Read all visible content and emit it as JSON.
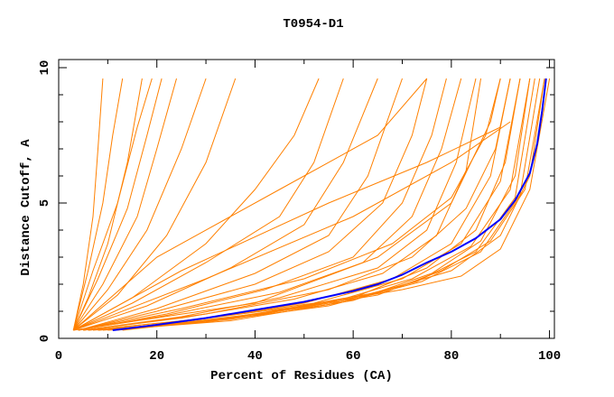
{
  "chart_data": {
    "type": "line",
    "title": "T0954-D1",
    "xlabel": "Percent of Residues (CA)",
    "ylabel": "Distance Cutoff, A",
    "xlim": [
      0,
      101
    ],
    "ylim": [
      0,
      10.3
    ],
    "x_ticks": [
      "0",
      "20",
      "40",
      "60",
      "80",
      "100"
    ],
    "x_tick_values": [
      0,
      20,
      40,
      60,
      80,
      100
    ],
    "x_minor_ticks": [
      10,
      30,
      50,
      70,
      90
    ],
    "y_ticks": [
      "0",
      "5",
      "10"
    ],
    "y_tick_values": [
      0,
      5,
      10
    ],
    "y_minor_ticks": [
      1,
      2,
      3,
      4,
      6,
      7,
      8,
      9
    ],
    "grid": false,
    "colors": {
      "models": "#ff8000",
      "highlight": "#0000ff",
      "axes": "#000000"
    },
    "highlight_series": [
      [
        11,
        0.3
      ],
      [
        20,
        0.5
      ],
      [
        30,
        0.75
      ],
      [
        40,
        1.05
      ],
      [
        50,
        1.35
      ],
      [
        60,
        1.75
      ],
      [
        65,
        2.0
      ],
      [
        70,
        2.35
      ],
      [
        75,
        2.8
      ],
      [
        80,
        3.2
      ],
      [
        85,
        3.7
      ],
      [
        90,
        4.4
      ],
      [
        93,
        5.1
      ],
      [
        96,
        6.1
      ],
      [
        97.5,
        7.2
      ],
      [
        98.5,
        8.4
      ],
      [
        99.3,
        9.6
      ]
    ],
    "series": [
      [
        [
          3,
          0.3
        ],
        [
          5,
          2
        ],
        [
          7,
          4.5
        ],
        [
          8,
          7
        ],
        [
          9,
          9.6
        ]
      ],
      [
        [
          3,
          0.3
        ],
        [
          6,
          2.5
        ],
        [
          9,
          5
        ],
        [
          11,
          7.5
        ],
        [
          13,
          9.6
        ]
      ],
      [
        [
          3,
          0.3
        ],
        [
          6,
          1.5
        ],
        [
          10,
          3.5
        ],
        [
          14,
          6.5
        ],
        [
          17,
          9.6
        ]
      ],
      [
        [
          3,
          0.3
        ],
        [
          7,
          2.5
        ],
        [
          12,
          5
        ],
        [
          16,
          7.8
        ],
        [
          19,
          9.6
        ]
      ],
      [
        [
          3,
          0.3
        ],
        [
          8,
          2.2
        ],
        [
          14,
          4.8
        ],
        [
          18,
          7.5
        ],
        [
          21,
          9.6
        ]
      ],
      [
        [
          3,
          0.3
        ],
        [
          9,
          2
        ],
        [
          16,
          4.5
        ],
        [
          20,
          7
        ],
        [
          24,
          9.6
        ]
      ],
      [
        [
          3,
          0.3
        ],
        [
          10,
          1.8
        ],
        [
          18,
          4
        ],
        [
          25,
          7
        ],
        [
          30,
          9.6
        ]
      ],
      [
        [
          3,
          0.3
        ],
        [
          12,
          1.6
        ],
        [
          22,
          3.8
        ],
        [
          30,
          6.5
        ],
        [
          36,
          9.6
        ]
      ],
      [
        [
          3,
          0.3
        ],
        [
          15,
          1.5
        ],
        [
          30,
          3.5
        ],
        [
          40,
          5.5
        ],
        [
          48,
          7.5
        ],
        [
          53,
          9.6
        ]
      ],
      [
        [
          3,
          0.3
        ],
        [
          15,
          1.3
        ],
        [
          30,
          2.8
        ],
        [
          45,
          4.5
        ],
        [
          52,
          6.5
        ],
        [
          58,
          9.6
        ]
      ],
      [
        [
          3,
          0.3
        ],
        [
          18,
          1.2
        ],
        [
          35,
          2.6
        ],
        [
          50,
          4.2
        ],
        [
          58,
          6.5
        ],
        [
          65,
          9.6
        ]
      ],
      [
        [
          4,
          0.3
        ],
        [
          20,
          1.1
        ],
        [
          40,
          2.4
        ],
        [
          55,
          3.8
        ],
        [
          63,
          6
        ],
        [
          70,
          9.6
        ]
      ],
      [
        [
          4,
          0.3
        ],
        [
          20,
          1
        ],
        [
          40,
          2
        ],
        [
          55,
          3.2
        ],
        [
          66,
          5
        ],
        [
          72,
          7.5
        ],
        [
          75,
          9.6
        ]
      ],
      [
        [
          4,
          0.3
        ],
        [
          22,
          0.9
        ],
        [
          42,
          1.8
        ],
        [
          60,
          3
        ],
        [
          70,
          5
        ],
        [
          76,
          7.5
        ],
        [
          79,
          9.6
        ]
      ],
      [
        [
          4,
          0.3
        ],
        [
          22,
          0.85
        ],
        [
          45,
          1.7
        ],
        [
          62,
          2.8
        ],
        [
          72,
          4.5
        ],
        [
          78,
          7
        ],
        [
          82,
          9.6
        ]
      ],
      [
        [
          5,
          0.3
        ],
        [
          25,
          0.8
        ],
        [
          45,
          1.5
        ],
        [
          65,
          2.6
        ],
        [
          75,
          4
        ],
        [
          81,
          6.5
        ],
        [
          85,
          9.6
        ]
      ],
      [
        [
          5,
          0.3
        ],
        [
          25,
          0.75
        ],
        [
          48,
          1.45
        ],
        [
          66,
          2.4
        ],
        [
          77,
          3.8
        ],
        [
          83,
          6.2
        ],
        [
          86,
          9.6
        ]
      ],
      [
        [
          6,
          0.3
        ],
        [
          28,
          0.7
        ],
        [
          50,
          1.3
        ],
        [
          68,
          2.2
        ],
        [
          80,
          3.5
        ],
        [
          88,
          6
        ],
        [
          92,
          9.6
        ]
      ],
      [
        [
          6,
          0.3
        ],
        [
          28,
          0.7
        ],
        [
          52,
          1.3
        ],
        [
          70,
          2.2
        ],
        [
          82,
          3.5
        ],
        [
          90,
          5.8
        ],
        [
          94,
          9.6
        ]
      ],
      [
        [
          7,
          0.3
        ],
        [
          30,
          0.65
        ],
        [
          55,
          1.3
        ],
        [
          72,
          2.2
        ],
        [
          84,
          3.4
        ],
        [
          92,
          5.5
        ],
        [
          96,
          9.6
        ]
      ],
      [
        [
          8,
          0.3
        ],
        [
          30,
          0.65
        ],
        [
          55,
          1.25
        ],
        [
          73,
          2.1
        ],
        [
          85,
          3.2
        ],
        [
          93,
          5.2
        ],
        [
          97,
          9.6
        ]
      ],
      [
        [
          9,
          0.3
        ],
        [
          30,
          0.6
        ],
        [
          55,
          1.2
        ],
        [
          74,
          2.1
        ],
        [
          86,
          3.2
        ],
        [
          94,
          5.3
        ],
        [
          98,
          9.6
        ]
      ],
      [
        [
          10,
          0.3
        ],
        [
          35,
          0.65
        ],
        [
          60,
          1.4
        ],
        [
          76,
          2.4
        ],
        [
          86,
          3.6
        ],
        [
          93,
          6
        ],
        [
          96,
          9.6
        ]
      ],
      [
        [
          8,
          0.3
        ],
        [
          35,
          0.7
        ],
        [
          60,
          1.5
        ],
        [
          75,
          2.6
        ],
        [
          85,
          4
        ],
        [
          91,
          6.5
        ],
        [
          94,
          9.6
        ]
      ],
      [
        [
          5,
          0.3
        ],
        [
          30,
          0.9
        ],
        [
          55,
          1.8
        ],
        [
          72,
          3
        ],
        [
          83,
          4.8
        ],
        [
          89,
          7
        ],
        [
          92,
          9.6
        ]
      ],
      [
        [
          4,
          0.3
        ],
        [
          25,
          1.1
        ],
        [
          50,
          2.2
        ],
        [
          68,
          3.5
        ],
        [
          80,
          5.2
        ],
        [
          87,
          7.5
        ],
        [
          90,
          9.6
        ]
      ],
      [
        [
          13,
          0.3
        ],
        [
          40,
          0.85
        ],
        [
          65,
          1.6
        ],
        [
          78,
          2.5
        ],
        [
          88,
          3.6
        ],
        [
          95,
          5.5
        ],
        [
          99,
          9.6
        ]
      ],
      [
        [
          12,
          0.3
        ],
        [
          40,
          0.9
        ],
        [
          65,
          1.7
        ],
        [
          80,
          2.5
        ],
        [
          90,
          3.8
        ],
        [
          96,
          6
        ],
        [
          99,
          9.6
        ]
      ],
      [
        [
          20,
          0.5
        ],
        [
          50,
          1.2
        ],
        [
          70,
          1.8
        ],
        [
          82,
          2.3
        ],
        [
          90,
          3.3
        ],
        [
          96,
          5.5
        ],
        [
          100,
          9.6
        ]
      ],
      [
        [
          3,
          0.3
        ],
        [
          30,
          2.2
        ],
        [
          60,
          4.5
        ],
        [
          80,
          6.5
        ],
        [
          92,
          8
        ]
      ],
      [
        [
          3,
          0.3
        ],
        [
          25,
          2.5
        ],
        [
          55,
          5
        ],
        [
          75,
          6.5
        ],
        [
          90,
          7.8
        ]
      ],
      [
        [
          3,
          0.3
        ],
        [
          20,
          3
        ],
        [
          45,
          5.5
        ],
        [
          65,
          7.5
        ],
        [
          75,
          9.6
        ]
      ],
      [
        [
          3,
          0.3
        ],
        [
          40,
          1.3
        ],
        [
          65,
          3
        ],
        [
          80,
          5
        ],
        [
          88,
          8
        ],
        [
          90,
          9.6
        ]
      ]
    ]
  }
}
